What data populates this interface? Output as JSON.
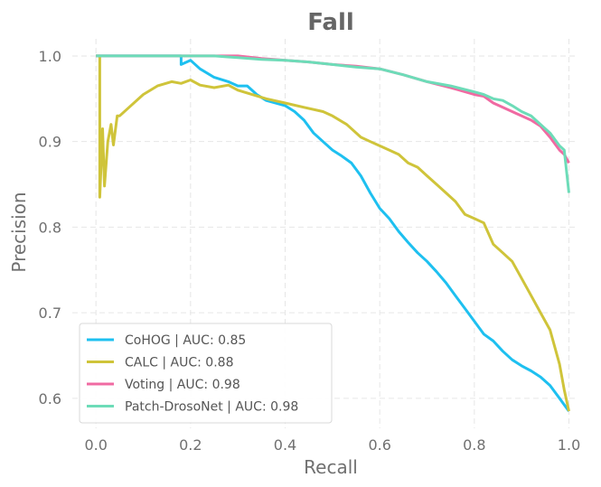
{
  "chart_data": {
    "type": "line",
    "title": "Fall",
    "xlabel": "Recall",
    "ylabel": "Precision",
    "xlim": [
      -0.05,
      1.02
    ],
    "ylim": [
      0.565,
      1.02
    ],
    "xticks": [
      0.0,
      0.2,
      0.4,
      0.6,
      0.8,
      1.0
    ],
    "xtick_labels": [
      "0.0",
      "0.2",
      "0.4",
      "0.6",
      "0.8",
      "1.0"
    ],
    "yticks": [
      0.6,
      0.7,
      0.8,
      0.9,
      1.0
    ],
    "ytick_labels": [
      "0.6",
      "0.7",
      "0.8",
      "0.9",
      "1.0"
    ],
    "grid": true,
    "legend_position": "lower-left",
    "series": [
      {
        "name": "CoHOG | AUC: 0.85",
        "color": "#1ec0f0",
        "points": [
          [
            0.0,
            1.0
          ],
          [
            0.18,
            1.0
          ],
          [
            0.18,
            0.99
          ],
          [
            0.2,
            0.995
          ],
          [
            0.22,
            0.985
          ],
          [
            0.25,
            0.975
          ],
          [
            0.28,
            0.97
          ],
          [
            0.3,
            0.965
          ],
          [
            0.32,
            0.965
          ],
          [
            0.34,
            0.955
          ],
          [
            0.36,
            0.948
          ],
          [
            0.38,
            0.945
          ],
          [
            0.4,
            0.942
          ],
          [
            0.42,
            0.935
          ],
          [
            0.44,
            0.925
          ],
          [
            0.46,
            0.91
          ],
          [
            0.48,
            0.9
          ],
          [
            0.5,
            0.89
          ],
          [
            0.52,
            0.883
          ],
          [
            0.54,
            0.875
          ],
          [
            0.56,
            0.86
          ],
          [
            0.58,
            0.84
          ],
          [
            0.6,
            0.822
          ],
          [
            0.62,
            0.81
          ],
          [
            0.64,
            0.795
          ],
          [
            0.66,
            0.782
          ],
          [
            0.68,
            0.77
          ],
          [
            0.7,
            0.76
          ],
          [
            0.72,
            0.748
          ],
          [
            0.74,
            0.735
          ],
          [
            0.76,
            0.72
          ],
          [
            0.78,
            0.705
          ],
          [
            0.8,
            0.69
          ],
          [
            0.82,
            0.675
          ],
          [
            0.84,
            0.667
          ],
          [
            0.86,
            0.655
          ],
          [
            0.88,
            0.645
          ],
          [
            0.9,
            0.638
          ],
          [
            0.92,
            0.632
          ],
          [
            0.94,
            0.625
          ],
          [
            0.96,
            0.615
          ],
          [
            0.98,
            0.6
          ],
          [
            1.0,
            0.585
          ]
        ]
      },
      {
        "name": "CALC | AUC: 0.88",
        "color": "#cfc43a",
        "points": [
          [
            0.0,
            1.0
          ],
          [
            0.008,
            1.0
          ],
          [
            0.008,
            0.835
          ],
          [
            0.014,
            0.915
          ],
          [
            0.018,
            0.848
          ],
          [
            0.025,
            0.9
          ],
          [
            0.032,
            0.92
          ],
          [
            0.037,
            0.896
          ],
          [
            0.045,
            0.93
          ],
          [
            0.05,
            0.93
          ],
          [
            0.07,
            0.94
          ],
          [
            0.1,
            0.955
          ],
          [
            0.13,
            0.965
          ],
          [
            0.16,
            0.97
          ],
          [
            0.18,
            0.968
          ],
          [
            0.2,
            0.972
          ],
          [
            0.22,
            0.966
          ],
          [
            0.25,
            0.963
          ],
          [
            0.28,
            0.966
          ],
          [
            0.3,
            0.96
          ],
          [
            0.33,
            0.955
          ],
          [
            0.36,
            0.95
          ],
          [
            0.4,
            0.945
          ],
          [
            0.44,
            0.94
          ],
          [
            0.48,
            0.935
          ],
          [
            0.5,
            0.93
          ],
          [
            0.53,
            0.92
          ],
          [
            0.56,
            0.905
          ],
          [
            0.58,
            0.9
          ],
          [
            0.6,
            0.895
          ],
          [
            0.62,
            0.89
          ],
          [
            0.64,
            0.885
          ],
          [
            0.66,
            0.875
          ],
          [
            0.68,
            0.87
          ],
          [
            0.7,
            0.86
          ],
          [
            0.72,
            0.85
          ],
          [
            0.74,
            0.84
          ],
          [
            0.76,
            0.83
          ],
          [
            0.78,
            0.815
          ],
          [
            0.8,
            0.81
          ],
          [
            0.82,
            0.805
          ],
          [
            0.84,
            0.78
          ],
          [
            0.86,
            0.77
          ],
          [
            0.88,
            0.76
          ],
          [
            0.9,
            0.74
          ],
          [
            0.92,
            0.72
          ],
          [
            0.94,
            0.7
          ],
          [
            0.96,
            0.68
          ],
          [
            0.98,
            0.64
          ],
          [
            0.99,
            0.61
          ],
          [
            1.0,
            0.585
          ]
        ]
      },
      {
        "name": "Voting | AUC: 0.98",
        "color": "#f06aa2",
        "points": [
          [
            0.0,
            1.0
          ],
          [
            0.3,
            1.0
          ],
          [
            0.35,
            0.997
          ],
          [
            0.4,
            0.995
          ],
          [
            0.45,
            0.993
          ],
          [
            0.5,
            0.99
          ],
          [
            0.55,
            0.988
          ],
          [
            0.6,
            0.985
          ],
          [
            0.65,
            0.978
          ],
          [
            0.7,
            0.97
          ],
          [
            0.75,
            0.963
          ],
          [
            0.8,
            0.955
          ],
          [
            0.82,
            0.953
          ],
          [
            0.84,
            0.945
          ],
          [
            0.86,
            0.94
          ],
          [
            0.88,
            0.935
          ],
          [
            0.9,
            0.93
          ],
          [
            0.92,
            0.925
          ],
          [
            0.94,
            0.918
          ],
          [
            0.96,
            0.905
          ],
          [
            0.98,
            0.89
          ],
          [
            0.99,
            0.885
          ],
          [
            1.0,
            0.875
          ]
        ]
      },
      {
        "name": "Patch-DrosoNet | AUC: 0.98",
        "color": "#6ddcb8",
        "points": [
          [
            0.0,
            1.0
          ],
          [
            0.25,
            1.0
          ],
          [
            0.3,
            0.998
          ],
          [
            0.35,
            0.996
          ],
          [
            0.4,
            0.995
          ],
          [
            0.45,
            0.993
          ],
          [
            0.5,
            0.99
          ],
          [
            0.55,
            0.987
          ],
          [
            0.6,
            0.985
          ],
          [
            0.65,
            0.978
          ],
          [
            0.7,
            0.97
          ],
          [
            0.75,
            0.965
          ],
          [
            0.8,
            0.958
          ],
          [
            0.82,
            0.955
          ],
          [
            0.84,
            0.95
          ],
          [
            0.86,
            0.948
          ],
          [
            0.88,
            0.942
          ],
          [
            0.9,
            0.935
          ],
          [
            0.92,
            0.93
          ],
          [
            0.94,
            0.92
          ],
          [
            0.96,
            0.91
          ],
          [
            0.98,
            0.895
          ],
          [
            0.99,
            0.89
          ],
          [
            1.0,
            0.84
          ]
        ]
      }
    ]
  }
}
